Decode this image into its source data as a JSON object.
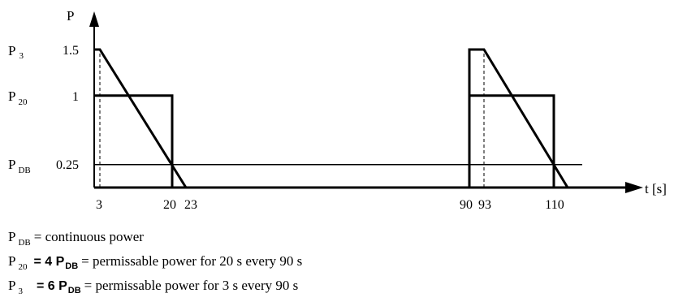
{
  "chart_data": {
    "type": "line",
    "xlabel": "t [s]",
    "ylabel": "P",
    "x_ticks": [
      "3",
      "20",
      "23",
      "90",
      "93",
      "110"
    ],
    "y_ticks": [
      "1.5",
      "1",
      "0.25"
    ],
    "y_tick_names": [
      {
        "main": "P",
        "sub": "3"
      },
      {
        "main": "P",
        "sub": "20"
      },
      {
        "main": "P",
        "sub": "DB"
      }
    ],
    "series": [
      {
        "x": [
          0,
          3,
          23,
          90,
          90,
          93,
          113,
          125
        ],
        "y": [
          1.5,
          1.5,
          0,
          0,
          1.5,
          1.5,
          0,
          0
        ]
      },
      {
        "x": [
          0,
          20,
          20,
          90,
          90,
          110,
          110,
          125
        ],
        "y": [
          1,
          1,
          0,
          0,
          1,
          1,
          0,
          0
        ]
      },
      {
        "x": [
          0,
          118
        ],
        "y": [
          0.25,
          0.25
        ]
      }
    ],
    "guides": [
      {
        "x": 3,
        "y_from": 0,
        "y_to": 1.5
      },
      {
        "x": 93,
        "y_from": 0,
        "y_to": 1.5
      }
    ],
    "xlim": [
      0,
      130
    ],
    "ylim": [
      0,
      1.5
    ]
  },
  "legend": [
    {
      "main": "P",
      "sub": "DB",
      "mid": "",
      "text": "= continuous power"
    },
    {
      "main": "P",
      "sub": "20",
      "mid": "= 4 P",
      "mid_sub": "DB",
      "text": "= permissable power for 20 s every 90 s"
    },
    {
      "main": "P",
      "sub": "3",
      "mid": "= 6 P",
      "mid_sub": "DB",
      "text": "= permissable power for 3 s every 90 s"
    }
  ]
}
